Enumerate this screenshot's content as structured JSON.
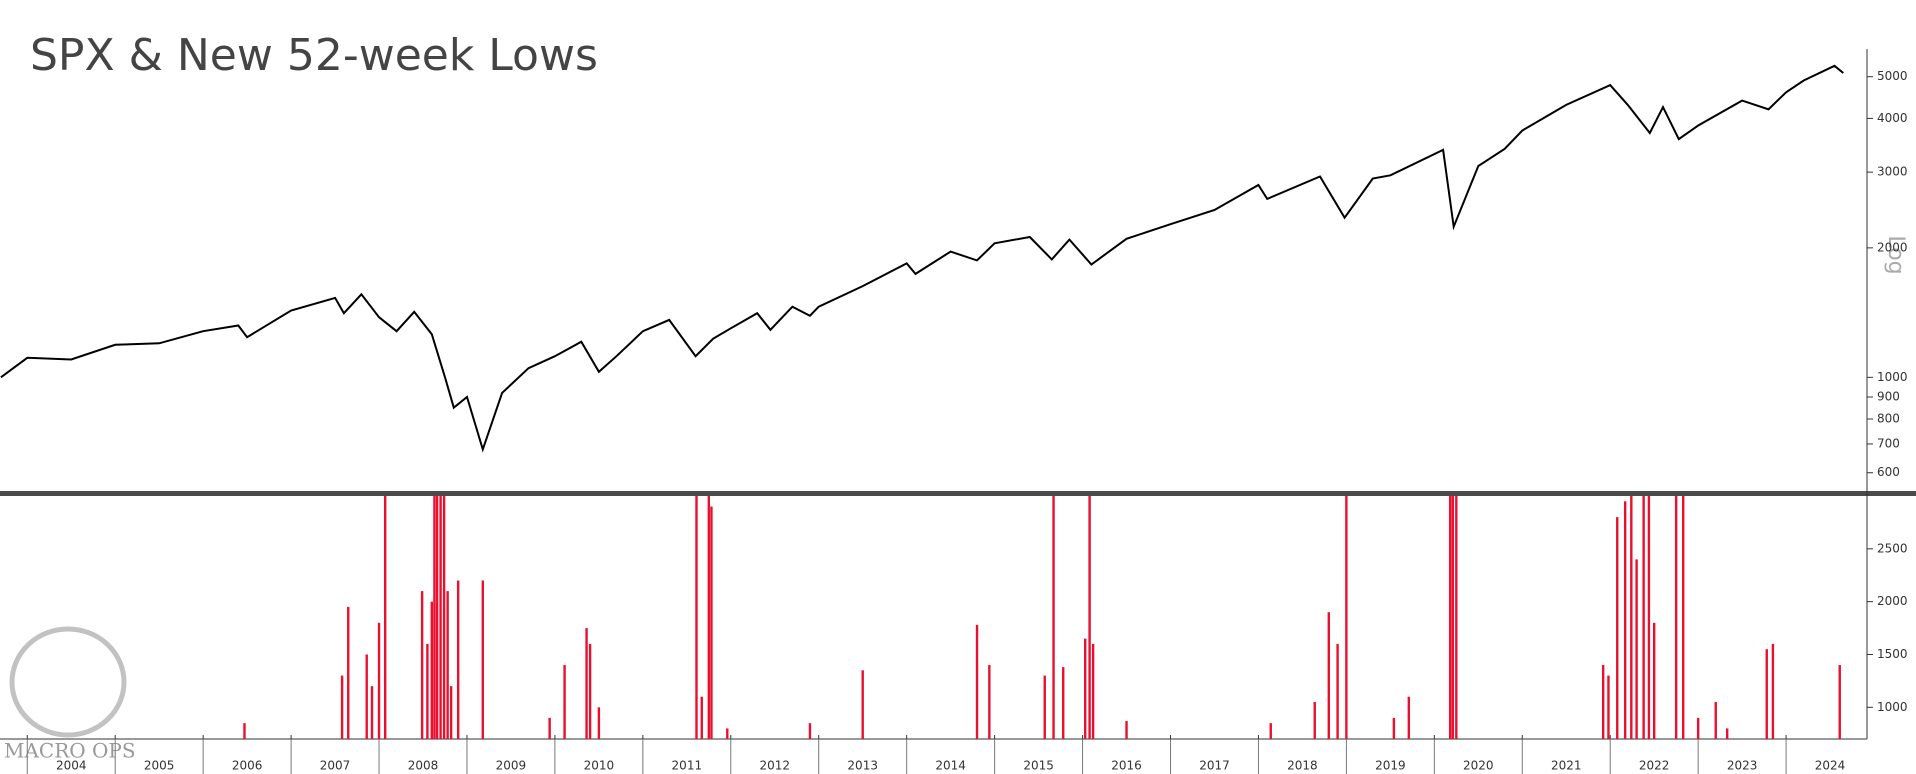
{
  "chart_data": [
    {
      "type": "line",
      "title": "SPX & New 52-week Lows",
      "log_scale": true,
      "color": "#000000",
      "axis_label": "Log",
      "xlim": [
        2003.69,
        2024.92
      ],
      "ylim": [
        550,
        5800
      ],
      "yticks": [
        600,
        700,
        800,
        900,
        1000,
        2000,
        3000,
        4000,
        5000
      ],
      "x": [
        2003.7,
        2004.0,
        2004.5,
        2005.0,
        2005.5,
        2006.0,
        2006.4,
        2006.5,
        2007.0,
        2007.5,
        2007.6,
        2007.8,
        2008.0,
        2008.2,
        2008.4,
        2008.6,
        2008.75,
        2008.85,
        2009.0,
        2009.18,
        2009.4,
        2009.7,
        2010.0,
        2010.3,
        2010.5,
        2010.7,
        2011.0,
        2011.3,
        2011.6,
        2011.8,
        2012.0,
        2012.3,
        2012.45,
        2012.7,
        2012.9,
        2013.0,
        2013.5,
        2014.0,
        2014.1,
        2014.5,
        2014.8,
        2015.0,
        2015.4,
        2015.65,
        2015.85,
        2016.1,
        2016.5,
        2017.0,
        2017.5,
        2018.0,
        2018.1,
        2018.7,
        2018.98,
        2019.3,
        2019.5,
        2020.1,
        2020.22,
        2020.5,
        2020.8,
        2021.0,
        2021.5,
        2022.0,
        2022.2,
        2022.45,
        2022.6,
        2022.78,
        2023.0,
        2023.5,
        2023.8,
        2024.0,
        2024.2,
        2024.55,
        2024.65
      ],
      "values": [
        1000,
        1110,
        1100,
        1190,
        1200,
        1280,
        1320,
        1240,
        1430,
        1530,
        1410,
        1560,
        1380,
        1280,
        1420,
        1260,
        1000,
        850,
        900,
        680,
        920,
        1050,
        1120,
        1210,
        1030,
        1120,
        1280,
        1360,
        1120,
        1230,
        1300,
        1410,
        1290,
        1460,
        1390,
        1460,
        1630,
        1840,
        1740,
        1960,
        1870,
        2050,
        2120,
        1880,
        2090,
        1830,
        2100,
        2270,
        2450,
        2800,
        2600,
        2930,
        2350,
        2900,
        2950,
        3380,
        2240,
        3100,
        3400,
        3750,
        4300,
        4780,
        4300,
        3700,
        4250,
        3580,
        3850,
        4400,
        4200,
        4600,
        4900,
        5300,
        5100
      ]
    },
    {
      "type": "bar",
      "color": "#e8102e",
      "xlim": [
        2003.69,
        2024.92
      ],
      "ylim": [
        700,
        3000
      ],
      "yticks": [
        1000,
        1500,
        2000,
        2500
      ],
      "xticks": [
        2004,
        2005,
        2006,
        2007,
        2008,
        2009,
        2010,
        2011,
        2012,
        2013,
        2014,
        2015,
        2016,
        2017,
        2018,
        2019,
        2020,
        2021,
        2022,
        2023,
        2024
      ],
      "x": [
        2006.47,
        2007.58,
        2007.65,
        2007.86,
        2007.92,
        2008.0,
        2008.07,
        2008.49,
        2008.55,
        2008.6,
        2008.63,
        2008.66,
        2008.7,
        2008.74,
        2008.78,
        2008.82,
        2008.9,
        2009.18,
        2009.94,
        2010.11,
        2010.36,
        2010.4,
        2010.5,
        2011.61,
        2011.67,
        2011.75,
        2011.78,
        2011.96,
        2012.9,
        2013.5,
        2014.8,
        2014.94,
        2015.57,
        2015.67,
        2015.78,
        2016.03,
        2016.08,
        2016.12,
        2016.5,
        2018.14,
        2018.64,
        2018.8,
        2018.9,
        2019.0,
        2019.54,
        2019.71,
        2020.18,
        2020.21,
        2020.25,
        2021.92,
        2021.98,
        2022.08,
        2022.17,
        2022.24,
        2022.3,
        2022.38,
        2022.44,
        2022.5,
        2022.75,
        2022.83,
        2023.0,
        2023.2,
        2023.33,
        2023.78,
        2023.85,
        2024.61
      ],
      "values": [
        850,
        1300,
        1950,
        1500,
        1200,
        1800,
        3000,
        2100,
        1600,
        2000,
        3000,
        3000,
        3000,
        3000,
        2100,
        1200,
        2200,
        2200,
        900,
        1400,
        1750,
        1600,
        1000,
        3000,
        1100,
        3000,
        2900,
        800,
        850,
        1350,
        1780,
        1400,
        1300,
        3000,
        1380,
        1650,
        3000,
        1600,
        870,
        850,
        1050,
        1900,
        1600,
        3000,
        900,
        1100,
        3000,
        3000,
        3000,
        1400,
        1300,
        2800,
        2950,
        3000,
        2400,
        3000,
        3000,
        1800,
        3000,
        3000,
        900,
        1050,
        800,
        1550,
        1600,
        1400
      ]
    }
  ],
  "watermark": "MACRO OPS"
}
